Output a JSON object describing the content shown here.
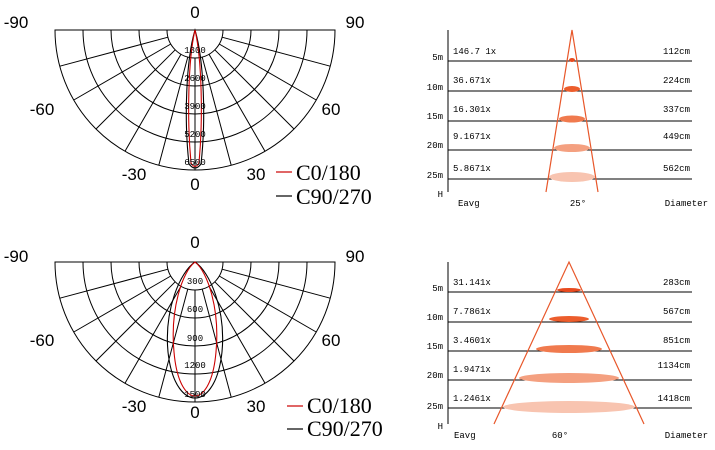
{
  "polar_top": {
    "angles": {
      "a0_top": "0",
      "a0_bottom": "0",
      "n90": "-90",
      "p90": "90",
      "n60": "-60",
      "p60": "60",
      "n30": "-30",
      "p30": "30"
    },
    "rings": [
      "1300",
      "2600",
      "3900",
      "5200",
      "6500"
    ],
    "legend": {
      "c0": "C0/180",
      "c90": "C90/270"
    }
  },
  "polar_bottom": {
    "angles": {
      "a0_top": "0",
      "a0_bottom": "0",
      "n90": "-90",
      "p90": "90",
      "n60": "-60",
      "p60": "60",
      "n30": "-30",
      "p30": "30"
    },
    "rings": [
      "300",
      "600",
      "900",
      "1200",
      "1500"
    ],
    "legend": {
      "c0": "C0/180",
      "c90": "C90/270"
    }
  },
  "beam_top": {
    "angle": "25°",
    "h_label": "H",
    "eavg_label": "Eavg",
    "diameter_label": "Diameter",
    "rows": [
      {
        "distance": "5m",
        "lux": "146.7 1x",
        "diameter": "112cm"
      },
      {
        "distance": "10m",
        "lux": "36.671x",
        "diameter": "224cm"
      },
      {
        "distance": "15m",
        "lux": "16.301x",
        "diameter": "337cm"
      },
      {
        "distance": "20m",
        "lux": "9.1671x",
        "diameter": "449cm"
      },
      {
        "distance": "25m",
        "lux": "5.8671x",
        "diameter": "562cm"
      }
    ]
  },
  "beam_bottom": {
    "angle": "60°",
    "h_label": "H",
    "eavg_label": "Eavg",
    "diameter_label": "Diameter",
    "rows": [
      {
        "distance": "5m",
        "lux": "31.141x",
        "diameter": "283cm"
      },
      {
        "distance": "10m",
        "lux": "7.7861x",
        "diameter": "567cm"
      },
      {
        "distance": "15m",
        "lux": "3.4601x",
        "diameter": "851cm"
      },
      {
        "distance": "20m",
        "lux": "1.9471x",
        "diameter": "1134cm"
      },
      {
        "distance": "25m",
        "lux": "1.2461x",
        "diameter": "1418cm"
      }
    ]
  },
  "colors": {
    "c0_curve": "#cc0000",
    "c90_curve": "#000000",
    "beam_line": "#e8572a",
    "grid": "#000000"
  }
}
